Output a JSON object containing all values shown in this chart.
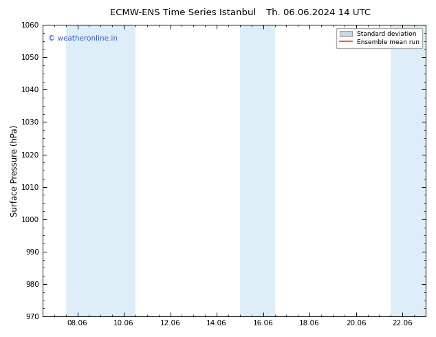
{
  "title_left": "ECMW-ENS Time Series Istanbul",
  "title_right": "Th. 06.06.2024 14 UTC",
  "ylabel": "Surface Pressure (hPa)",
  "ylim": [
    970,
    1060
  ],
  "yticks": [
    970,
    980,
    990,
    1000,
    1010,
    1020,
    1030,
    1040,
    1050,
    1060
  ],
  "xlim": [
    6.5,
    23.0
  ],
  "xticks": [
    8.0,
    10.0,
    12.0,
    14.0,
    16.0,
    18.0,
    20.0,
    22.0
  ],
  "xticklabels": [
    "08.06",
    "10.06",
    "12.06",
    "14.06",
    "16.06",
    "18.06",
    "20.06",
    "22.06"
  ],
  "shaded_bands": [
    {
      "x_start": 7.5,
      "x_end": 9.0
    },
    {
      "x_start": 9.0,
      "x_end": 10.5
    },
    {
      "x_start": 15.0,
      "x_end": 15.75
    },
    {
      "x_start": 15.75,
      "x_end": 16.5
    },
    {
      "x_start": 21.5,
      "x_end": 22.25
    },
    {
      "x_start": 22.25,
      "x_end": 23.0
    }
  ],
  "shade_color": "#ddeef8",
  "watermark_text": "© weatheronline.in",
  "watermark_color": "#3a5fcd",
  "legend_std_label": "Standard deviation",
  "legend_mean_label": "Ensemble mean run",
  "legend_std_facecolor": "#c8d8e8",
  "legend_std_edgecolor": "#999999",
  "legend_mean_color": "#ff3300",
  "background_color": "#ffffff",
  "title_fontsize": 9.5,
  "tick_fontsize": 7.5,
  "ylabel_fontsize": 8.5,
  "watermark_fontsize": 7.5
}
